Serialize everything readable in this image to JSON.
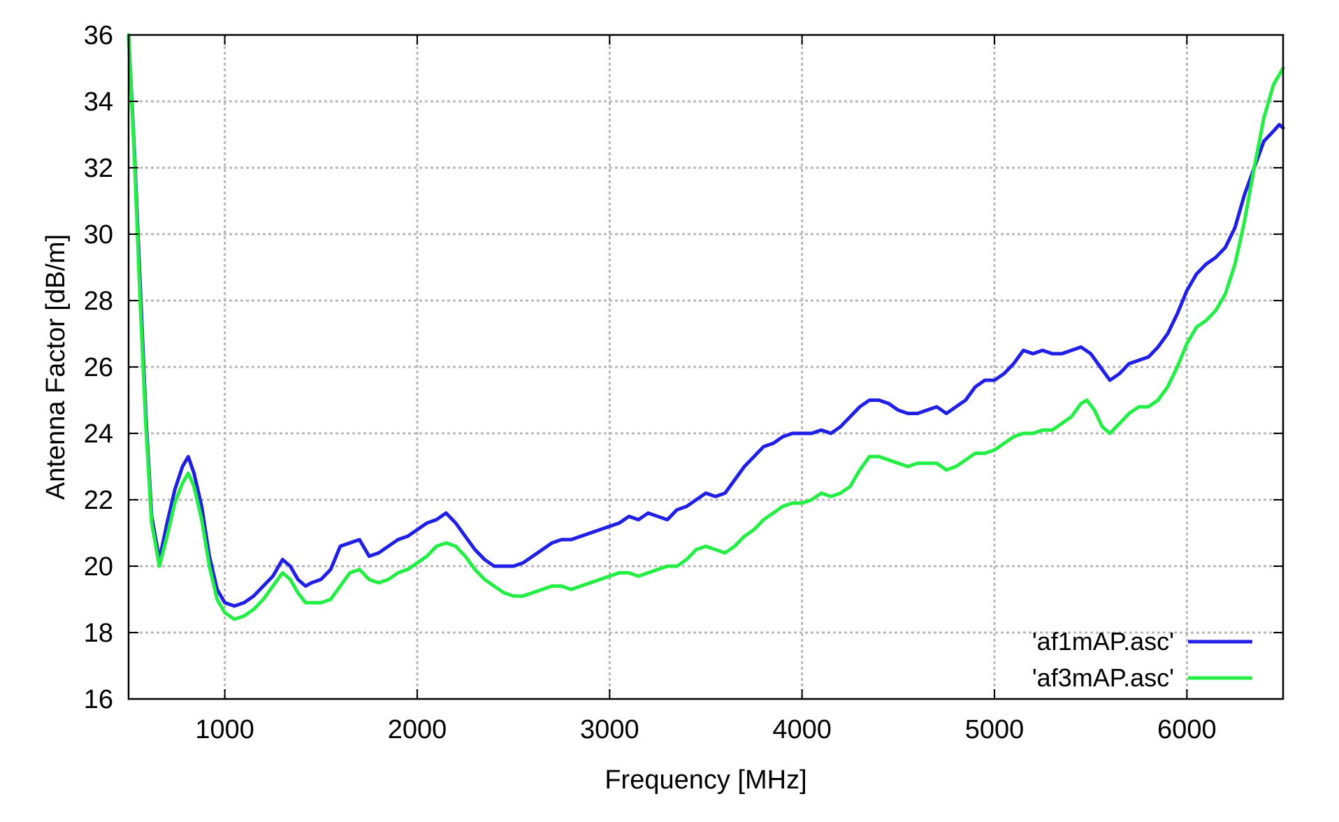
{
  "chart_data": {
    "type": "line",
    "title": "",
    "xlabel": "Frequency [MHz]",
    "ylabel": "Antenna Factor [dB/m]",
    "xlim": [
      500,
      6500
    ],
    "ylim": [
      16,
      36
    ],
    "x_ticks": [
      1000,
      2000,
      3000,
      4000,
      5000,
      6000
    ],
    "y_ticks": [
      16,
      18,
      20,
      22,
      24,
      26,
      28,
      30,
      32,
      34,
      36
    ],
    "grid": true,
    "legend_position": "bottom-right",
    "series": [
      {
        "name": "'af1mAP.asc'",
        "color": "#1f1fe6",
        "points": [
          [
            500,
            36
          ],
          [
            530,
            32.5
          ],
          [
            560,
            28.5
          ],
          [
            590,
            24.5
          ],
          [
            620,
            21.5
          ],
          [
            660,
            20.2
          ],
          [
            700,
            21.3
          ],
          [
            740,
            22.3
          ],
          [
            780,
            23.0
          ],
          [
            810,
            23.3
          ],
          [
            840,
            22.8
          ],
          [
            880,
            21.8
          ],
          [
            920,
            20.3
          ],
          [
            960,
            19.3
          ],
          [
            1000,
            18.9
          ],
          [
            1050,
            18.8
          ],
          [
            1100,
            18.9
          ],
          [
            1150,
            19.1
          ],
          [
            1200,
            19.4
          ],
          [
            1250,
            19.7
          ],
          [
            1300,
            20.2
          ],
          [
            1340,
            20.0
          ],
          [
            1380,
            19.6
          ],
          [
            1420,
            19.4
          ],
          [
            1450,
            19.5
          ],
          [
            1500,
            19.6
          ],
          [
            1550,
            19.9
          ],
          [
            1600,
            20.6
          ],
          [
            1650,
            20.7
          ],
          [
            1700,
            20.8
          ],
          [
            1750,
            20.3
          ],
          [
            1800,
            20.4
          ],
          [
            1850,
            20.6
          ],
          [
            1900,
            20.8
          ],
          [
            1950,
            20.9
          ],
          [
            2000,
            21.1
          ],
          [
            2050,
            21.3
          ],
          [
            2100,
            21.4
          ],
          [
            2150,
            21.6
          ],
          [
            2200,
            21.3
          ],
          [
            2250,
            20.9
          ],
          [
            2300,
            20.5
          ],
          [
            2350,
            20.2
          ],
          [
            2400,
            20.0
          ],
          [
            2450,
            20.0
          ],
          [
            2500,
            20.0
          ],
          [
            2550,
            20.1
          ],
          [
            2600,
            20.3
          ],
          [
            2650,
            20.5
          ],
          [
            2700,
            20.7
          ],
          [
            2750,
            20.8
          ],
          [
            2800,
            20.8
          ],
          [
            2850,
            20.9
          ],
          [
            2900,
            21.0
          ],
          [
            2950,
            21.1
          ],
          [
            3000,
            21.2
          ],
          [
            3050,
            21.3
          ],
          [
            3100,
            21.5
          ],
          [
            3150,
            21.4
          ],
          [
            3200,
            21.6
          ],
          [
            3250,
            21.5
          ],
          [
            3300,
            21.4
          ],
          [
            3350,
            21.7
          ],
          [
            3400,
            21.8
          ],
          [
            3450,
            22.0
          ],
          [
            3500,
            22.2
          ],
          [
            3550,
            22.1
          ],
          [
            3600,
            22.2
          ],
          [
            3650,
            22.6
          ],
          [
            3700,
            23.0
          ],
          [
            3750,
            23.3
          ],
          [
            3800,
            23.6
          ],
          [
            3850,
            23.7
          ],
          [
            3900,
            23.9
          ],
          [
            3950,
            24.0
          ],
          [
            4000,
            24.0
          ],
          [
            4050,
            24.0
          ],
          [
            4100,
            24.1
          ],
          [
            4150,
            24.0
          ],
          [
            4200,
            24.2
          ],
          [
            4250,
            24.5
          ],
          [
            4300,
            24.8
          ],
          [
            4350,
            25.0
          ],
          [
            4400,
            25.0
          ],
          [
            4450,
            24.9
          ],
          [
            4500,
            24.7
          ],
          [
            4550,
            24.6
          ],
          [
            4600,
            24.6
          ],
          [
            4650,
            24.7
          ],
          [
            4700,
            24.8
          ],
          [
            4750,
            24.6
          ],
          [
            4800,
            24.8
          ],
          [
            4850,
            25.0
          ],
          [
            4900,
            25.4
          ],
          [
            4950,
            25.6
          ],
          [
            5000,
            25.6
          ],
          [
            5050,
            25.8
          ],
          [
            5100,
            26.1
          ],
          [
            5150,
            26.5
          ],
          [
            5200,
            26.4
          ],
          [
            5250,
            26.5
          ],
          [
            5300,
            26.4
          ],
          [
            5350,
            26.4
          ],
          [
            5400,
            26.5
          ],
          [
            5450,
            26.6
          ],
          [
            5500,
            26.4
          ],
          [
            5550,
            26.0
          ],
          [
            5600,
            25.6
          ],
          [
            5650,
            25.8
          ],
          [
            5700,
            26.1
          ],
          [
            5750,
            26.2
          ],
          [
            5800,
            26.3
          ],
          [
            5850,
            26.6
          ],
          [
            5900,
            27.0
          ],
          [
            5950,
            27.6
          ],
          [
            6000,
            28.3
          ],
          [
            6050,
            28.8
          ],
          [
            6100,
            29.1
          ],
          [
            6150,
            29.3
          ],
          [
            6200,
            29.6
          ],
          [
            6250,
            30.2
          ],
          [
            6300,
            31.2
          ],
          [
            6350,
            32.0
          ],
          [
            6400,
            32.8
          ],
          [
            6450,
            33.1
          ],
          [
            6480,
            33.3
          ],
          [
            6500,
            33.2
          ]
        ]
      },
      {
        "name": "'af3mAP.asc'",
        "color": "#22ee44",
        "points": [
          [
            500,
            36
          ],
          [
            530,
            32.3
          ],
          [
            560,
            28.0
          ],
          [
            590,
            24.2
          ],
          [
            620,
            21.3
          ],
          [
            660,
            20.0
          ],
          [
            700,
            20.9
          ],
          [
            740,
            21.9
          ],
          [
            780,
            22.5
          ],
          [
            810,
            22.8
          ],
          [
            840,
            22.4
          ],
          [
            880,
            21.4
          ],
          [
            920,
            20.0
          ],
          [
            960,
            19.0
          ],
          [
            1000,
            18.6
          ],
          [
            1050,
            18.4
          ],
          [
            1100,
            18.5
          ],
          [
            1150,
            18.7
          ],
          [
            1200,
            19.0
          ],
          [
            1250,
            19.4
          ],
          [
            1300,
            19.8
          ],
          [
            1340,
            19.6
          ],
          [
            1380,
            19.2
          ],
          [
            1420,
            18.9
          ],
          [
            1450,
            18.9
          ],
          [
            1500,
            18.9
          ],
          [
            1550,
            19.0
          ],
          [
            1600,
            19.4
          ],
          [
            1650,
            19.8
          ],
          [
            1700,
            19.9
          ],
          [
            1750,
            19.6
          ],
          [
            1800,
            19.5
          ],
          [
            1850,
            19.6
          ],
          [
            1900,
            19.8
          ],
          [
            1950,
            19.9
          ],
          [
            2000,
            20.1
          ],
          [
            2050,
            20.3
          ],
          [
            2100,
            20.6
          ],
          [
            2150,
            20.7
          ],
          [
            2200,
            20.6
          ],
          [
            2250,
            20.3
          ],
          [
            2300,
            19.9
          ],
          [
            2350,
            19.6
          ],
          [
            2400,
            19.4
          ],
          [
            2450,
            19.2
          ],
          [
            2500,
            19.1
          ],
          [
            2550,
            19.1
          ],
          [
            2600,
            19.2
          ],
          [
            2650,
            19.3
          ],
          [
            2700,
            19.4
          ],
          [
            2750,
            19.4
          ],
          [
            2800,
            19.3
          ],
          [
            2850,
            19.4
          ],
          [
            2900,
            19.5
          ],
          [
            2950,
            19.6
          ],
          [
            3000,
            19.7
          ],
          [
            3050,
            19.8
          ],
          [
            3100,
            19.8
          ],
          [
            3150,
            19.7
          ],
          [
            3200,
            19.8
          ],
          [
            3250,
            19.9
          ],
          [
            3300,
            20.0
          ],
          [
            3350,
            20.0
          ],
          [
            3400,
            20.2
          ],
          [
            3450,
            20.5
          ],
          [
            3500,
            20.6
          ],
          [
            3550,
            20.5
          ],
          [
            3600,
            20.4
          ],
          [
            3650,
            20.6
          ],
          [
            3700,
            20.9
          ],
          [
            3750,
            21.1
          ],
          [
            3800,
            21.4
          ],
          [
            3850,
            21.6
          ],
          [
            3900,
            21.8
          ],
          [
            3950,
            21.9
          ],
          [
            4000,
            21.9
          ],
          [
            4050,
            22.0
          ],
          [
            4100,
            22.2
          ],
          [
            4150,
            22.1
          ],
          [
            4200,
            22.2
          ],
          [
            4250,
            22.4
          ],
          [
            4300,
            22.9
          ],
          [
            4350,
            23.3
          ],
          [
            4400,
            23.3
          ],
          [
            4450,
            23.2
          ],
          [
            4500,
            23.1
          ],
          [
            4550,
            23.0
          ],
          [
            4600,
            23.1
          ],
          [
            4650,
            23.1
          ],
          [
            4700,
            23.1
          ],
          [
            4750,
            22.9
          ],
          [
            4800,
            23.0
          ],
          [
            4850,
            23.2
          ],
          [
            4900,
            23.4
          ],
          [
            4950,
            23.4
          ],
          [
            5000,
            23.5
          ],
          [
            5050,
            23.7
          ],
          [
            5100,
            23.9
          ],
          [
            5150,
            24.0
          ],
          [
            5200,
            24.0
          ],
          [
            5250,
            24.1
          ],
          [
            5300,
            24.1
          ],
          [
            5350,
            24.3
          ],
          [
            5400,
            24.5
          ],
          [
            5450,
            24.9
          ],
          [
            5480,
            25.0
          ],
          [
            5520,
            24.7
          ],
          [
            5560,
            24.2
          ],
          [
            5600,
            24.0
          ],
          [
            5650,
            24.3
          ],
          [
            5700,
            24.6
          ],
          [
            5750,
            24.8
          ],
          [
            5800,
            24.8
          ],
          [
            5850,
            25.0
          ],
          [
            5900,
            25.4
          ],
          [
            5950,
            26.0
          ],
          [
            6000,
            26.7
          ],
          [
            6050,
            27.2
          ],
          [
            6100,
            27.4
          ],
          [
            6150,
            27.7
          ],
          [
            6200,
            28.2
          ],
          [
            6250,
            29.1
          ],
          [
            6300,
            30.4
          ],
          [
            6350,
            32.0
          ],
          [
            6400,
            33.5
          ],
          [
            6450,
            34.5
          ],
          [
            6480,
            34.8
          ],
          [
            6500,
            35.0
          ]
        ]
      }
    ]
  }
}
